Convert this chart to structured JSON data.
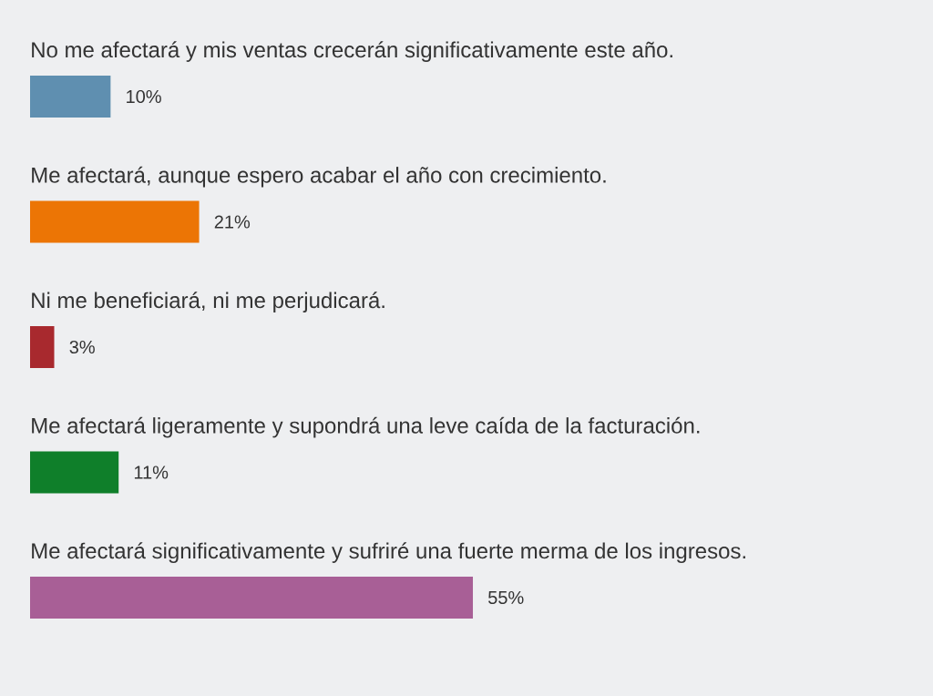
{
  "chart_data": {
    "type": "bar",
    "orientation": "horizontal",
    "categories": [
      "No me afectará y mis ventas crecerán significativamente este año.",
      "Me afectará, aunque espero acabar el año con crecimiento.",
      "Ni me beneficiará, ni me perjudicará.",
      "Me afectará ligeramente y supondrá una leve caída de la facturación.",
      "Me afectará significativamente y sufriré una fuerte merma de los ingresos."
    ],
    "values": [
      10,
      21,
      3,
      11,
      55
    ],
    "value_labels": [
      "10%",
      "21%",
      "3%",
      "11%",
      "55%"
    ],
    "colors": [
      "#5f8fb0",
      "#ec7505",
      "#a8292e",
      "#0f7f2a",
      "#a85f96"
    ]
  }
}
